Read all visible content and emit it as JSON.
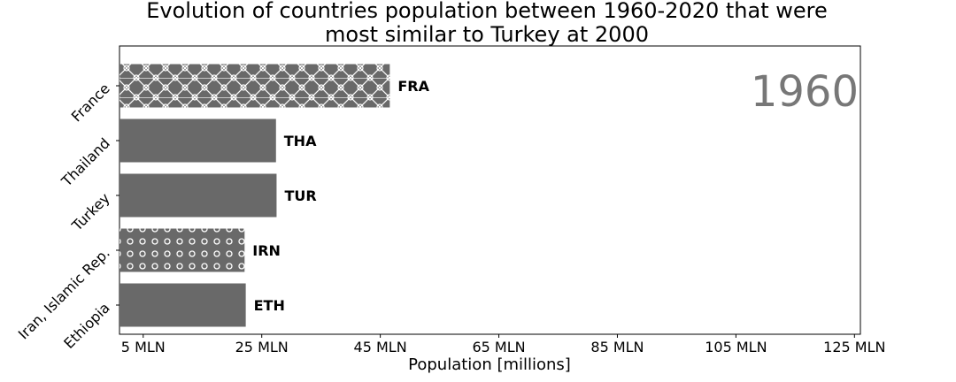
{
  "chart_data": {
    "type": "bar",
    "orientation": "horizontal",
    "title": "Evolution of countries population between 1960-2020 that were most similar to Turkey at 2000",
    "title_lines": [
      "Evolution of countries population between 1960-2020 that were",
      "most similar to Turkey at 2000"
    ],
    "xlabel": "Population [millions]",
    "ylabel": "",
    "year": "1960",
    "xlim": [
      1,
      126
    ],
    "xticks": [
      {
        "value": 5,
        "label": "5 MLN"
      },
      {
        "value": 25,
        "label": "25 MLN"
      },
      {
        "value": 45,
        "label": "45 MLN"
      },
      {
        "value": 65,
        "label": "65 MLN"
      },
      {
        "value": 85,
        "label": "85 MLN"
      },
      {
        "value": 105,
        "label": "105 MLN"
      },
      {
        "value": 125,
        "label": "125 MLN"
      }
    ],
    "categories": [
      "France",
      "Thailand",
      "Turkey",
      "Iran, Islamic Rep.",
      "Ethiopia"
    ],
    "codes": [
      "FRA",
      "THA",
      "TUR",
      "IRN",
      "ETH"
    ],
    "values": [
      46.6,
      27.4,
      27.5,
      22.1,
      22.3
    ],
    "patterns": [
      "crosshatch-circles",
      "solid",
      "solid",
      "circles",
      "solid"
    ],
    "bar_color": "#696969",
    "year_color": "#777777",
    "grid": false,
    "legend": "none"
  }
}
